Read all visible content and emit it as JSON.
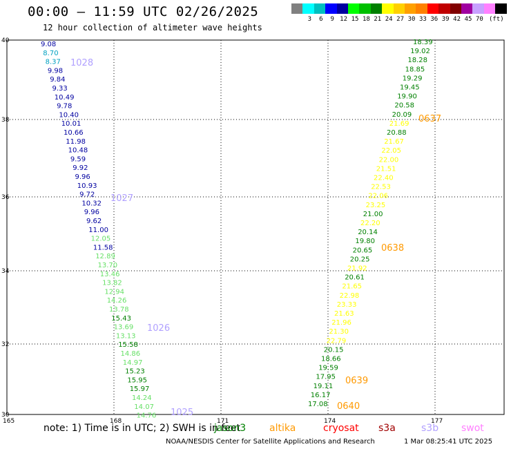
{
  "header": {
    "title": "00:00 – 11:59 UTC 02/26/2025",
    "subtitle": "12 hour collection of altimeter wave heights"
  },
  "legend": {
    "colors": [
      "#808080",
      "#00ffff",
      "#00c0c0",
      "#0000ff",
      "#0000a0",
      "#00ff00",
      "#00c000",
      "#008000",
      "#ffff00",
      "#ffd000",
      "#ffa000",
      "#ff8000",
      "#ff0000",
      "#c00000",
      "#800000",
      "#a000a0",
      "#c8a0ff",
      "#ff80ff",
      "#000000"
    ],
    "labels": [
      "3",
      "6",
      "9",
      "12",
      "15",
      "18",
      "21",
      "24",
      "27",
      "30",
      "33",
      "36",
      "39",
      "42",
      "45",
      "70"
    ],
    "unit": "(ft)"
  },
  "map": {
    "lon_ticks": [
      "165",
      "168",
      "171",
      "174",
      "177"
    ],
    "lat_ticks": [
      "40",
      "38",
      "36",
      "34",
      "32",
      "30"
    ],
    "tracks": [
      {
        "points": [
          {
            "v": "9.08",
            "c": "#0000a0"
          },
          {
            "v": "8.70",
            "c": "#00a0c0"
          },
          {
            "v": "8.37",
            "c": "#00a0c0"
          },
          {
            "v": "9.98",
            "c": "#0000a0"
          },
          {
            "v": "9.84",
            "c": "#0000a0"
          },
          {
            "v": "9.33",
            "c": "#0000a0"
          },
          {
            "v": "10.49",
            "c": "#0000a0"
          },
          {
            "v": "9.78",
            "c": "#0000a0"
          },
          {
            "v": "10.40",
            "c": "#0000a0"
          },
          {
            "v": "10.01",
            "c": "#0000a0"
          },
          {
            "v": "10.66",
            "c": "#0000a0"
          },
          {
            "v": "11.98",
            "c": "#0000a0"
          },
          {
            "v": "10.48",
            "c": "#0000a0"
          },
          {
            "v": "9.59",
            "c": "#0000a0"
          },
          {
            "v": "9.92",
            "c": "#0000a0"
          },
          {
            "v": "9.96",
            "c": "#0000a0"
          },
          {
            "v": "10.93",
            "c": "#0000a0"
          },
          {
            "v": "9.72",
            "c": "#0000a0"
          },
          {
            "v": "10.32",
            "c": "#0000a0"
          },
          {
            "v": "9.96",
            "c": "#0000a0"
          },
          {
            "v": "9.62",
            "c": "#0000a0"
          },
          {
            "v": "11.00",
            "c": "#0000a0"
          },
          {
            "v": "12.05",
            "c": "#66e066"
          },
          {
            "v": "11.58",
            "c": "#0000a0"
          },
          {
            "v": "12.89",
            "c": "#66e066"
          },
          {
            "v": "13.70",
            "c": "#66e066"
          },
          {
            "v": "13.46",
            "c": "#66e066"
          },
          {
            "v": "13.82",
            "c": "#66e066"
          },
          {
            "v": "12.94",
            "c": "#66e066"
          },
          {
            "v": "14.26",
            "c": "#66e066"
          },
          {
            "v": "13.78",
            "c": "#66e066"
          },
          {
            "v": "15.43",
            "c": "#008000"
          },
          {
            "v": "13.69",
            "c": "#66e066"
          },
          {
            "v": "13.13",
            "c": "#66e066"
          },
          {
            "v": "15.58",
            "c": "#008000"
          },
          {
            "v": "14.86",
            "c": "#66e066"
          },
          {
            "v": "14.97",
            "c": "#66e066"
          },
          {
            "v": "15.23",
            "c": "#008000"
          },
          {
            "v": "15.95",
            "c": "#008000"
          },
          {
            "v": "15.97",
            "c": "#008000"
          },
          {
            "v": "14.24",
            "c": "#66e066"
          },
          {
            "v": "14.07",
            "c": "#66e066"
          },
          {
            "v": "14.76",
            "c": "#66e066"
          }
        ],
        "times": [
          {
            "t": "1028",
            "c": "#b0a0ff"
          },
          {
            "t": "1027",
            "c": "#b0a0ff"
          },
          {
            "t": "1026",
            "c": "#b0a0ff"
          },
          {
            "t": "1025",
            "c": "#b0a0ff"
          }
        ]
      },
      {
        "points": [
          {
            "v": "18.39",
            "c": "#008000"
          },
          {
            "v": "19.02",
            "c": "#008000"
          },
          {
            "v": "18.28",
            "c": "#008000"
          },
          {
            "v": "18.85",
            "c": "#008000"
          },
          {
            "v": "19.29",
            "c": "#008000"
          },
          {
            "v": "19.45",
            "c": "#008000"
          },
          {
            "v": "19.90",
            "c": "#008000"
          },
          {
            "v": "20.58",
            "c": "#008000"
          },
          {
            "v": "20.09",
            "c": "#008000"
          },
          {
            "v": "21.69",
            "c": "#ffff00"
          },
          {
            "v": "20.88",
            "c": "#008000"
          },
          {
            "v": "21.67",
            "c": "#ffff00"
          },
          {
            "v": "22.05",
            "c": "#ffff00"
          },
          {
            "v": "22.00",
            "c": "#ffff00"
          },
          {
            "v": "21.51",
            "c": "#ffff00"
          },
          {
            "v": "22.40",
            "c": "#ffff00"
          },
          {
            "v": "22.53",
            "c": "#ffff00"
          },
          {
            "v": "22.06",
            "c": "#ffff00"
          },
          {
            "v": "23.25",
            "c": "#ffff00"
          },
          {
            "v": "21.00",
            "c": "#008000"
          },
          {
            "v": "22.20",
            "c": "#ffff00"
          },
          {
            "v": "20.14",
            "c": "#008000"
          },
          {
            "v": "19.80",
            "c": "#008000"
          },
          {
            "v": "20.65",
            "c": "#008000"
          },
          {
            "v": "20.25",
            "c": "#008000"
          },
          {
            "v": "21.92",
            "c": "#ffff00"
          },
          {
            "v": "20.61",
            "c": "#008000"
          },
          {
            "v": "21.65",
            "c": "#ffff00"
          },
          {
            "v": "22.98",
            "c": "#ffff00"
          },
          {
            "v": "23.33",
            "c": "#ffff00"
          },
          {
            "v": "21.63",
            "c": "#ffff00"
          },
          {
            "v": "21.96",
            "c": "#ffff00"
          },
          {
            "v": "21.30",
            "c": "#ffff00"
          },
          {
            "v": "22.79",
            "c": "#ffff00"
          },
          {
            "v": "20.15",
            "c": "#008000"
          },
          {
            "v": "18.66",
            "c": "#008000"
          },
          {
            "v": "19.59",
            "c": "#008000"
          },
          {
            "v": "17.95",
            "c": "#008000"
          },
          {
            "v": "19.11",
            "c": "#008000"
          },
          {
            "v": "16.17",
            "c": "#008000"
          },
          {
            "v": "17.08",
            "c": "#008000"
          }
        ],
        "times": [
          {
            "t": "0637",
            "c": "#ff9900"
          },
          {
            "t": "0638",
            "c": "#ff9900"
          },
          {
            "t": "0639",
            "c": "#ff9900"
          },
          {
            "t": "0640",
            "c": "#ff9900"
          }
        ]
      }
    ]
  },
  "footer": {
    "note": "note: 1) Time is in UTC; 2) SWH is in feet",
    "satellites": [
      {
        "name": "jason3",
        "color": "#008000"
      },
      {
        "name": "altika",
        "color": "#ff9900"
      },
      {
        "name": "cryosat",
        "color": "#ff0000"
      },
      {
        "name": "s3a",
        "color": "#a00000"
      },
      {
        "name": "s3b",
        "color": "#b0a0ff"
      },
      {
        "name": "swot",
        "color": "#ff80ff"
      }
    ],
    "credit": "NOAA/NESDIS Center for Satellite Applications and Research",
    "timestamp": "1 Mar 08:25:41 UTC 2025"
  }
}
